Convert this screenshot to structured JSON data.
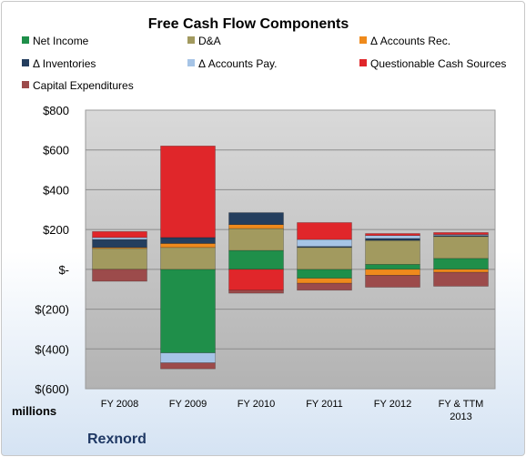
{
  "chart_data": {
    "type": "bar",
    "stacked": true,
    "title": "Free Cash Flow Components",
    "ylabel": "millions",
    "company": "Rexnord",
    "ylim": [
      -600,
      800
    ],
    "yticks": [
      -600,
      -400,
      -200,
      0,
      200,
      400,
      600,
      800
    ],
    "ytick_labels": [
      "$(600)",
      "$(400)",
      "$(200)",
      "$-",
      "$200",
      "$400",
      "$600",
      "$800"
    ],
    "categories": [
      "FY 2008",
      "FY 2009",
      "FY 2010",
      "FY 2011",
      "FY 2012",
      "FY & TTM 2013"
    ],
    "legend_position": "top",
    "series": [
      {
        "name": "Net Income",
        "color": "#1f8f4a",
        "values": [
          0,
          -420,
          95,
          -45,
          25,
          55
        ]
      },
      {
        "name": "D&A",
        "color": "#a29a5f",
        "values": [
          105,
          110,
          110,
          110,
          120,
          110
        ]
      },
      {
        "name": "Δ Accounts Rec.",
        "color": "#ef8a1c",
        "values": [
          5,
          20,
          20,
          -25,
          -30,
          -15
        ]
      },
      {
        "name": "Δ Inventories",
        "color": "#243e5e",
        "values": [
          40,
          30,
          60,
          5,
          10,
          5
        ]
      },
      {
        "name": "Δ Accounts Pay.",
        "color": "#a6c4e6",
        "values": [
          10,
          -50,
          0,
          35,
          15,
          5
        ]
      },
      {
        "name": "Questionable Cash Sources",
        "color": "#e0262a",
        "values": [
          30,
          460,
          -105,
          85,
          10,
          10
        ]
      },
      {
        "name": "Capital Expenditures",
        "color": "#9c4b4b",
        "values": [
          -60,
          -30,
          -15,
          -35,
          -60,
          -70
        ]
      }
    ]
  }
}
